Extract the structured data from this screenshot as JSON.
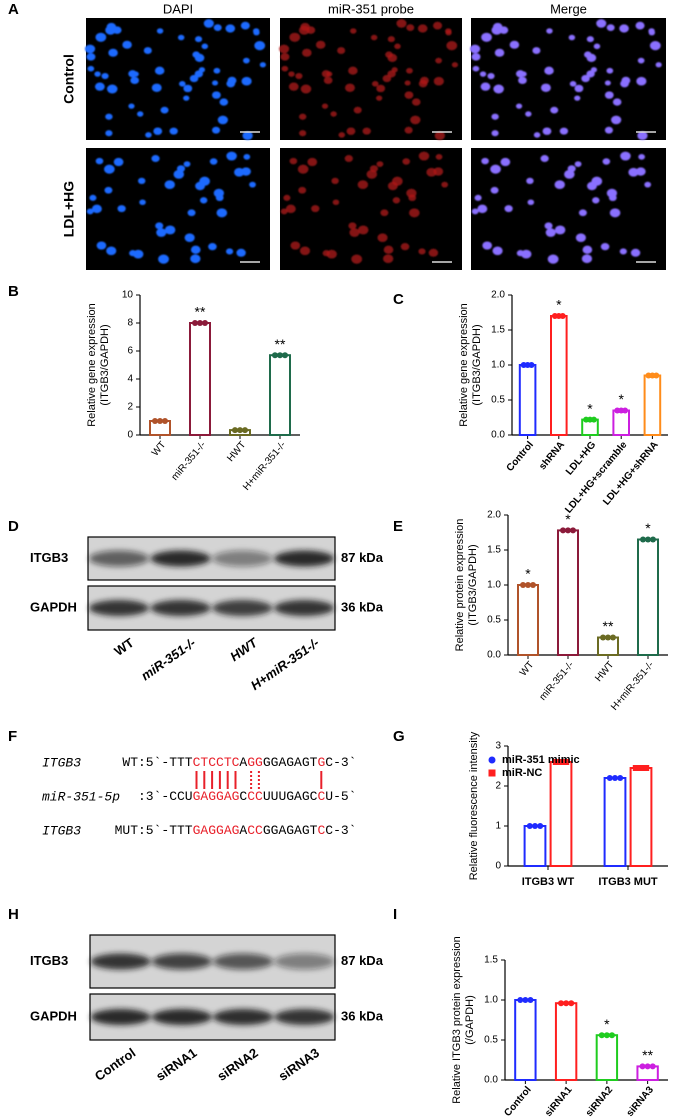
{
  "panel_labels": [
    "A",
    "B",
    "C",
    "D",
    "E",
    "F",
    "G",
    "H",
    "I"
  ],
  "panel_a": {
    "columns": [
      "DAPI",
      "miR-351 probe",
      "Merge"
    ],
    "rows": [
      "Control",
      "LDL+HG"
    ]
  },
  "blot_d": {
    "bands": [
      "ITGB3",
      "GAPDH"
    ],
    "sizes": [
      "87 kDa",
      "36 kDa"
    ],
    "lanes": [
      "WT",
      "miR-351-/-",
      "HWT",
      "H+miR-351-/-"
    ]
  },
  "blot_h": {
    "bands": [
      "ITGB3",
      "GAPDH"
    ],
    "sizes": [
      "87 kDa",
      "36 kDa"
    ],
    "lanes": [
      "Control",
      "siRNA1",
      "siRNA2",
      "siRNA3"
    ]
  },
  "sequences": [
    {
      "label": "ITGB3",
      "segments": [
        {
          "text": "WT:5`-TTT",
          "color": "#000000"
        },
        {
          "text": "CTCCTC",
          "color": "#e8202a"
        },
        {
          "text": "A",
          "color": "#000000"
        },
        {
          "text": "GG",
          "color": "#e8202a"
        },
        {
          "text": "GGAGAGT",
          "color": "#000000"
        },
        {
          "text": "G",
          "color": "#e8202a"
        },
        {
          "text": "C-3`",
          "color": "#000000"
        }
      ]
    },
    {
      "label": "miR-351-5p",
      "segments": [
        {
          "text": ":3`-CCU",
          "color": "#000000"
        },
        {
          "text": "GAGGAG",
          "color": "#e8202a"
        },
        {
          "text": "C",
          "color": "#000000"
        },
        {
          "text": "CC",
          "color": "#e8202a"
        },
        {
          "text": "UUUGAGC",
          "color": "#000000"
        },
        {
          "text": "C",
          "color": "#e8202a"
        },
        {
          "text": "U-5`",
          "color": "#000000"
        }
      ]
    },
    {
      "label": "ITGB3",
      "segments": [
        {
          "text": "MUT:5`-TTT",
          "color": "#000000"
        },
        {
          "text": "GAGGAG",
          "color": "#e8202a"
        },
        {
          "text": "A",
          "color": "#000000"
        },
        {
          "text": "CC",
          "color": "#e8202a"
        },
        {
          "text": "GGAGAGT",
          "color": "#000000"
        },
        {
          "text": "C",
          "color": "#e8202a"
        },
        {
          "text": "C-3`",
          "color": "#000000"
        }
      ]
    }
  ],
  "chart_data": [
    {
      "type": "bar",
      "ylabel": [
        "Relative gene expression",
        "(ITGB3/GAPDH)"
      ],
      "categories": [
        "WT",
        "miR-351-/-",
        "HWT",
        "H+miR-351-/-"
      ],
      "values": [
        1.0,
        8.0,
        0.35,
        5.7
      ],
      "colors": [
        "#b0532a",
        "#8b1a3a",
        "#6b6b23",
        "#1f6b4b"
      ],
      "significance": [
        null,
        "**",
        null,
        "**"
      ],
      "ylim": [
        0,
        10
      ],
      "yticks": [
        0,
        2,
        4,
        6,
        8,
        10
      ]
    },
    {
      "type": "bar",
      "ylabel": [
        "Relative gene expression",
        "(ITGB3/GAPDH)"
      ],
      "categories": [
        "Control",
        "shRNA",
        "LDL+HG",
        "LDL+HG+scramble",
        "LDL+HG+shRNA"
      ],
      "values": [
        1.0,
        1.7,
        0.22,
        0.35,
        0.85
      ],
      "colors": [
        "#1f2bff",
        "#ff1f1f",
        "#1fcc1f",
        "#cc1fe0",
        "#ff8c1a"
      ],
      "significance": [
        null,
        "*",
        "*",
        "*",
        null
      ],
      "ylim": [
        0,
        2
      ],
      "yticks": [
        {
          "value": 0,
          "label": "0.0"
        },
        0.5,
        {
          "value": 1,
          "label": "1.0"
        },
        1.5,
        {
          "value": 2,
          "label": "2.0"
        }
      ]
    },
    {
      "type": "bar",
      "ylabel": [
        "Relative protein expression",
        "(ITGB3/GAPDH)"
      ],
      "categories": [
        "WT",
        "miR-351-/-",
        "HWT",
        "H+miR-351-/-"
      ],
      "values": [
        1.0,
        1.78,
        0.25,
        1.65
      ],
      "colors": [
        "#b0532a",
        "#8b1a3a",
        "#6b6b23",
        "#1f6b4b"
      ],
      "significance": [
        "*",
        "*",
        "**",
        "*"
      ],
      "ylim": [
        0,
        2
      ],
      "yticks": [
        {
          "value": 0,
          "label": "0.0"
        },
        0.5,
        {
          "value": 1,
          "label": "1.0"
        },
        1.5,
        {
          "value": 2,
          "label": "2.0"
        }
      ]
    },
    {
      "type": "grouped_bar",
      "ylabel": [
        "Relative fluorescence intensity"
      ],
      "categories": [
        "ITGB3 WT",
        "ITGB3 MUT"
      ],
      "series": [
        {
          "name": "miR-351 mimic",
          "color": "#1f2bff",
          "values": [
            1.0,
            2.2
          ]
        },
        {
          "name": "miR-NC",
          "color": "#ff1f1f",
          "values": [
            2.6,
            2.45
          ]
        }
      ],
      "legend": "top-left",
      "ylim": [
        0,
        3
      ],
      "yticks": [
        0,
        1,
        2,
        3
      ]
    },
    {
      "type": "bar",
      "ylabel": [
        "Relative ITGB3 protein expression",
        "(/GAPDH)"
      ],
      "categories": [
        "Control",
        "siRNA1",
        "siRNA2",
        "siRNA3"
      ],
      "values": [
        1.0,
        0.96,
        0.56,
        0.17
      ],
      "colors": [
        "#1f2bff",
        "#ff1f1f",
        "#1fcc1f",
        "#cc1fe0"
      ],
      "significance": [
        null,
        null,
        "*",
        "**"
      ],
      "ylim": [
        0,
        1.5
      ],
      "yticks": [
        {
          "value": 0,
          "label": "0.0"
        },
        0.5,
        {
          "value": 1,
          "label": "1.0"
        },
        1.5
      ]
    }
  ]
}
